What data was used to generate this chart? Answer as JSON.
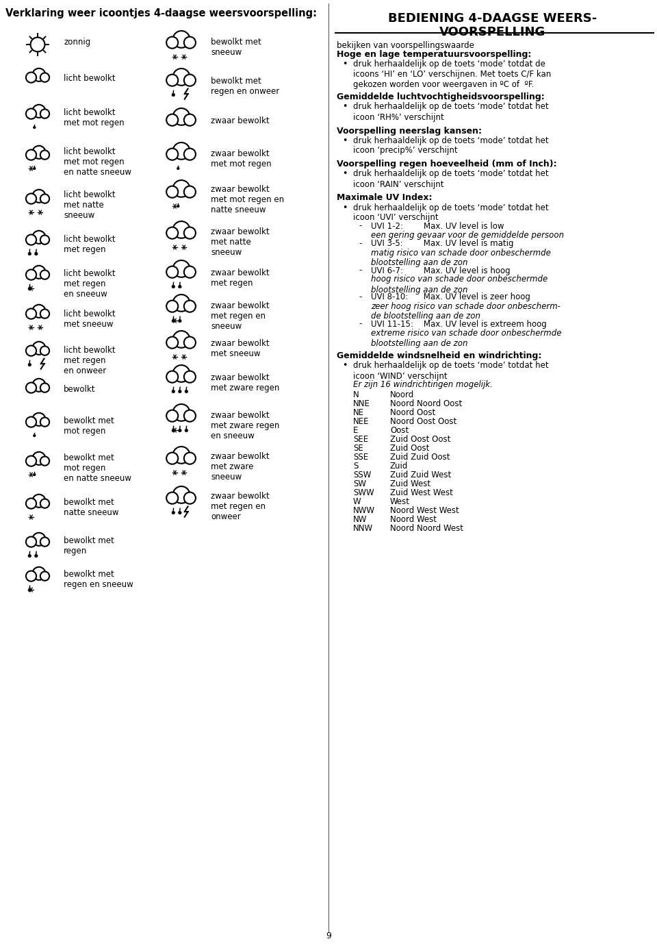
{
  "title_left": "Verklaring weer icoontjes 4-daagse weersvoorspelling:",
  "title_right_line1": "BEDIENING 4-DAAGSE WEERS-",
  "title_right_line2": "VOORSPELLING",
  "bg_color": "#ffffff",
  "text_color": "#000000",
  "right_section_content": [
    {
      "type": "normal",
      "text": "bekijken van voorspellingswaarde"
    },
    {
      "type": "bold",
      "text": "Hoge en lage temperatuursvoorspelling:"
    },
    {
      "type": "bullet",
      "text": "druk herhaaldelijk op de toets ‘mode’ totdat de\nicoons ‘HI’ en ‘LO’ verschijnen. Met toets C/F kan\ngekozen worden voor weergaven in ºC of  ºF."
    },
    {
      "type": "empty",
      "text": ""
    },
    {
      "type": "bold",
      "text": "Gemiddelde luchtvochtigheidsvoorspelling:"
    },
    {
      "type": "bullet",
      "text": "druk herhaaldelijk op de toets ‘mode’ totdat het\nicoon ‘RH%’ verschijnt"
    },
    {
      "type": "empty",
      "text": ""
    },
    {
      "type": "bold",
      "text": "Voorspelling neerslag kansen:"
    },
    {
      "type": "bullet",
      "text": "druk herhaaldelijk op de toets ‘mode’ totdat het\nicoon ‘precip%’ verschijnt"
    },
    {
      "type": "empty",
      "text": ""
    },
    {
      "type": "bold",
      "text": "Voorspelling regen hoeveelheid (mm of Inch):"
    },
    {
      "type": "bullet",
      "text": "druk herhaaldelijk op de toets ‘mode’ totdat het\nicoon ‘RAIN’ verschijnt"
    },
    {
      "type": "empty",
      "text": ""
    },
    {
      "type": "bold",
      "text": "Maximale UV Index:"
    },
    {
      "type": "bullet",
      "text": "druk herhaaldelijk op de toets ‘mode’ totdat het\nicoon ‘UVI’ verschijnt"
    },
    {
      "type": "sub_dash",
      "text": "UVI 1-2:        Max. UV level is low"
    },
    {
      "type": "sub_italic",
      "text": "een gering gevaar voor de gemiddelde persoon"
    },
    {
      "type": "sub_dash",
      "text": "UVI 3-5:        Max. UV level is matig"
    },
    {
      "type": "sub_italic",
      "text": "matig risico van schade door onbeschermde\nblootstelling aan de zon"
    },
    {
      "type": "sub_dash",
      "text": "UVI 6-7:        Max. UV level is hoog"
    },
    {
      "type": "sub_italic",
      "text": "hoog risico van schade door onbeschermde\nblootstelling aan de zon"
    },
    {
      "type": "sub_dash",
      "text": "UVI 8-10:      Max. UV level is zeer hoog"
    },
    {
      "type": "sub_italic",
      "text": "zeer hoog risico van schade door onbescherm-\nde blootstelling aan de zon"
    },
    {
      "type": "sub_dash",
      "text": "UVI 11-15:    Max. UV level is extreem hoog"
    },
    {
      "type": "sub_italic",
      "text": "extreme risico van schade door onbeschermde\nblootstelling aan de zon"
    },
    {
      "type": "empty",
      "text": ""
    },
    {
      "type": "bold",
      "text": "Gemiddelde windsnelheid en windrichting:"
    },
    {
      "type": "bullet",
      "text": "druk herhaaldelijk op de toets ‘mode’ totdat het\nicoon ‘WIND’ verschijnt"
    },
    {
      "type": "normal_indent",
      "text": "Er zijn 16 windrichtingen mogelijk."
    }
  ],
  "wind_directions": [
    [
      "N",
      "Noord"
    ],
    [
      "NNE",
      "Noord Noord Oost"
    ],
    [
      "NE",
      "Noord Oost"
    ],
    [
      "NEE",
      "Noord Oost Oost"
    ],
    [
      "E",
      "Oost"
    ],
    [
      "SEE",
      "Zuid Oost Oost"
    ],
    [
      "SE",
      "Zuid Oost"
    ],
    [
      "SSE",
      "Zuid Zuid Oost"
    ],
    [
      "S",
      "Zuid"
    ],
    [
      "SSW",
      "Zuid Zuid West"
    ],
    [
      "SW",
      "Zuid West"
    ],
    [
      "SWW",
      "Zuid West West"
    ],
    [
      "W",
      "West"
    ],
    [
      "NWW",
      "Noord West West"
    ],
    [
      "NW",
      "Noord West"
    ],
    [
      "NNW",
      "Noord Noord West"
    ]
  ],
  "left_labels": [
    [
      93,
      55,
      "zonnig"
    ],
    [
      93,
      108,
      "licht bewolkt"
    ],
    [
      93,
      158,
      "licht bewolkt\nmet mot regen"
    ],
    [
      93,
      215,
      "licht bewolkt\nmet mot regen\nen natte sneeuw"
    ],
    [
      93,
      278,
      "licht bewolkt\nmet natte\nsneeuw"
    ],
    [
      93,
      343,
      "licht bewolkt\nmet regen"
    ],
    [
      93,
      393,
      "licht bewolkt\nmet regen\nen sneeuw"
    ],
    [
      93,
      452,
      "licht bewolkt\nmet sneeuw"
    ],
    [
      93,
      505,
      "licht bewolkt\nmet regen\nen onweer"
    ],
    [
      93,
      562,
      "bewolkt"
    ],
    [
      93,
      608,
      "bewolkt met\nmot regen"
    ],
    [
      93,
      662,
      "bewolkt met\nmot regen\nen natte sneeuw"
    ],
    [
      93,
      727,
      "bewolkt met\nnatte sneeuw"
    ],
    [
      93,
      783,
      "bewolkt met\nregen"
    ],
    [
      93,
      832,
      "bewolkt met\nregen en sneeuw"
    ]
  ],
  "mid_labels": [
    [
      308,
      55,
      "bewolkt met\nsneeuw"
    ],
    [
      308,
      112,
      "bewolkt met\nregen en onweer"
    ],
    [
      308,
      170,
      "zwaar bewolkt"
    ],
    [
      308,
      218,
      "zwaar bewolkt\nmet mot regen"
    ],
    [
      308,
      270,
      "zwaar bewolkt\nmet mot regen en\nnatte sneeuw"
    ],
    [
      308,
      332,
      "zwaar bewolkt\nmet natte\nsneeuw"
    ],
    [
      308,
      392,
      "zwaar bewolkt\nmet regen"
    ],
    [
      308,
      440,
      "zwaar bewolkt\nmet regen en\nsneeuw"
    ],
    [
      308,
      495,
      "zwaar bewolkt\nmet sneeuw"
    ],
    [
      308,
      545,
      "zwaar bewolkt\nmet zware regen"
    ],
    [
      308,
      600,
      "zwaar bewolkt\nmet zware regen\nen sneeuw"
    ],
    [
      308,
      660,
      "zwaar bewolkt\nmet zware\nsneeuw"
    ],
    [
      308,
      718,
      "zwaar bewolkt\nmet regen en\nonweer"
    ]
  ],
  "icon_configs_left": [
    [
      55,
      65,
      true,
      true,
      false,
      false,
      0,
      0,
      false,
      0,
      0
    ],
    [
      55,
      115,
      false,
      false,
      true,
      false,
      0,
      0,
      false,
      0,
      0
    ],
    [
      55,
      168,
      false,
      false,
      true,
      false,
      0,
      0,
      false,
      1,
      0
    ],
    [
      55,
      228,
      false,
      false,
      true,
      false,
      0,
      0,
      false,
      1,
      1
    ],
    [
      55,
      292,
      false,
      false,
      true,
      false,
      0,
      0,
      false,
      0,
      2
    ],
    [
      55,
      352,
      false,
      false,
      true,
      false,
      2,
      0,
      false,
      0,
      0
    ],
    [
      55,
      403,
      false,
      false,
      true,
      false,
      1,
      0,
      false,
      0,
      1
    ],
    [
      55,
      460,
      false,
      false,
      true,
      false,
      0,
      2,
      false,
      0,
      0
    ],
    [
      55,
      514,
      false,
      false,
      true,
      false,
      1,
      0,
      true,
      0,
      0
    ],
    [
      55,
      568,
      false,
      false,
      false,
      false,
      0,
      0,
      false,
      0,
      0
    ],
    [
      55,
      618,
      false,
      false,
      false,
      false,
      0,
      0,
      false,
      1,
      0
    ],
    [
      55,
      675,
      false,
      false,
      false,
      false,
      0,
      0,
      false,
      1,
      1
    ],
    [
      55,
      737,
      false,
      false,
      false,
      false,
      0,
      0,
      false,
      0,
      1
    ],
    [
      55,
      793,
      false,
      false,
      false,
      false,
      2,
      0,
      false,
      0,
      0
    ],
    [
      55,
      843,
      false,
      false,
      false,
      false,
      1,
      0,
      false,
      0,
      1
    ]
  ],
  "icon_configs_mid": [
    [
      265,
      65,
      false,
      false,
      false,
      true,
      0,
      2,
      false,
      0,
      0
    ],
    [
      265,
      120,
      false,
      false,
      false,
      true,
      1,
      0,
      true,
      0,
      0
    ],
    [
      265,
      178,
      false,
      false,
      false,
      true,
      0,
      0,
      false,
      0,
      0
    ],
    [
      265,
      228,
      false,
      false,
      false,
      true,
      0,
      0,
      false,
      1,
      0
    ],
    [
      265,
      283,
      false,
      false,
      false,
      true,
      0,
      0,
      false,
      1,
      1
    ],
    [
      265,
      343,
      false,
      false,
      false,
      true,
      0,
      2,
      false,
      0,
      0
    ],
    [
      265,
      400,
      false,
      false,
      false,
      true,
      2,
      0,
      false,
      0,
      0
    ],
    [
      265,
      450,
      false,
      false,
      false,
      true,
      2,
      0,
      false,
      0,
      1
    ],
    [
      265,
      503,
      false,
      false,
      false,
      true,
      0,
      2,
      false,
      0,
      0
    ],
    [
      265,
      553,
      false,
      false,
      false,
      true,
      3,
      0,
      false,
      0,
      0
    ],
    [
      265,
      610,
      false,
      false,
      false,
      true,
      3,
      0,
      false,
      0,
      1
    ],
    [
      265,
      672,
      false,
      false,
      false,
      true,
      0,
      0,
      false,
      0,
      2
    ],
    [
      265,
      730,
      false,
      false,
      false,
      true,
      2,
      0,
      true,
      0,
      0
    ]
  ],
  "page_number": "9"
}
